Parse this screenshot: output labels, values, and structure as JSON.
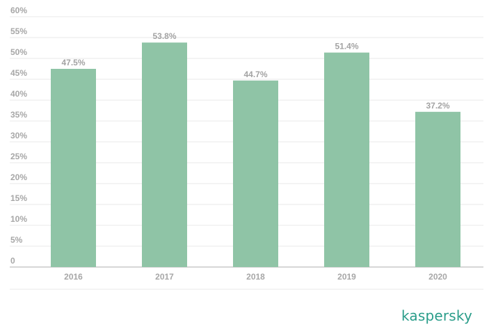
{
  "chart_data": {
    "type": "bar",
    "title": "",
    "xlabel": "",
    "ylabel": "",
    "categories": [
      "2016",
      "2017",
      "2018",
      "2019",
      "2020"
    ],
    "values": [
      47.5,
      53.8,
      44.7,
      51.4,
      37.2
    ],
    "data_labels": [
      "47.5%",
      "53.8%",
      "44.7%",
      "51.4%",
      "37.2%"
    ],
    "y_ticks": [
      0,
      5,
      10,
      15,
      20,
      25,
      30,
      35,
      40,
      45,
      50,
      55,
      60
    ],
    "y_tick_labels": [
      "0",
      "5%",
      "10%",
      "15%",
      "20%",
      "25%",
      "30%",
      "35%",
      "40%",
      "45%",
      "50%",
      "55%",
      "60%"
    ],
    "ylim": [
      0,
      60
    ],
    "grid": true,
    "legend": "none",
    "colors": {
      "bar": "#8fc4a6",
      "grid": "#e9e9e9",
      "axis": "#c8c8c8",
      "label": "#a7a7a7"
    }
  },
  "brand": {
    "logo_text": "kaspersky",
    "logo_color": "#2a9d8a"
  }
}
